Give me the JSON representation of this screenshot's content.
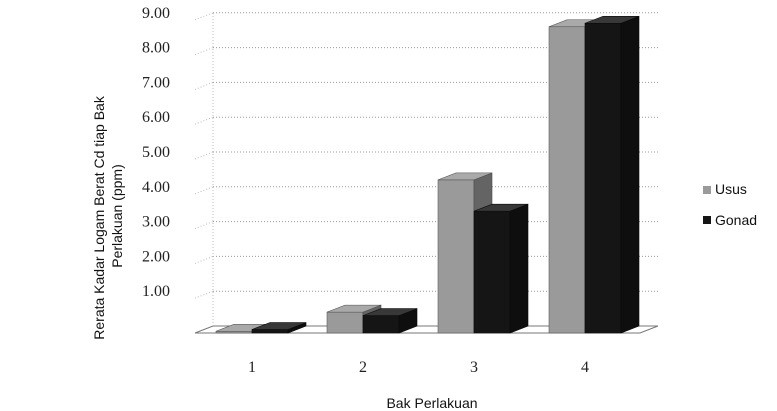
{
  "chart_data": {
    "type": "bar",
    "categories": [
      "1",
      "2",
      "3",
      "4"
    ],
    "series": [
      {
        "name": "Usus",
        "values": [
          0.05,
          0.6,
          4.4,
          8.8
        ],
        "color": "#9a9a9a"
      },
      {
        "name": "Gonad",
        "values": [
          0.1,
          0.5,
          3.5,
          8.9
        ],
        "color": "#151515"
      }
    ],
    "xlabel": "Bak Perlakuan",
    "ylabel_lines": [
      "Rerata Kadar Logam Berat Cd tiap Bak",
      "Perlakuan (ppm)"
    ],
    "ylim": [
      0,
      9
    ],
    "yticks": [
      "1.00",
      "2.00",
      "3.00",
      "4.00",
      "5.00",
      "6.00",
      "7.00",
      "8.00",
      "9.00"
    ],
    "grid": true,
    "legend_position": "right",
    "style": "3d-column"
  }
}
